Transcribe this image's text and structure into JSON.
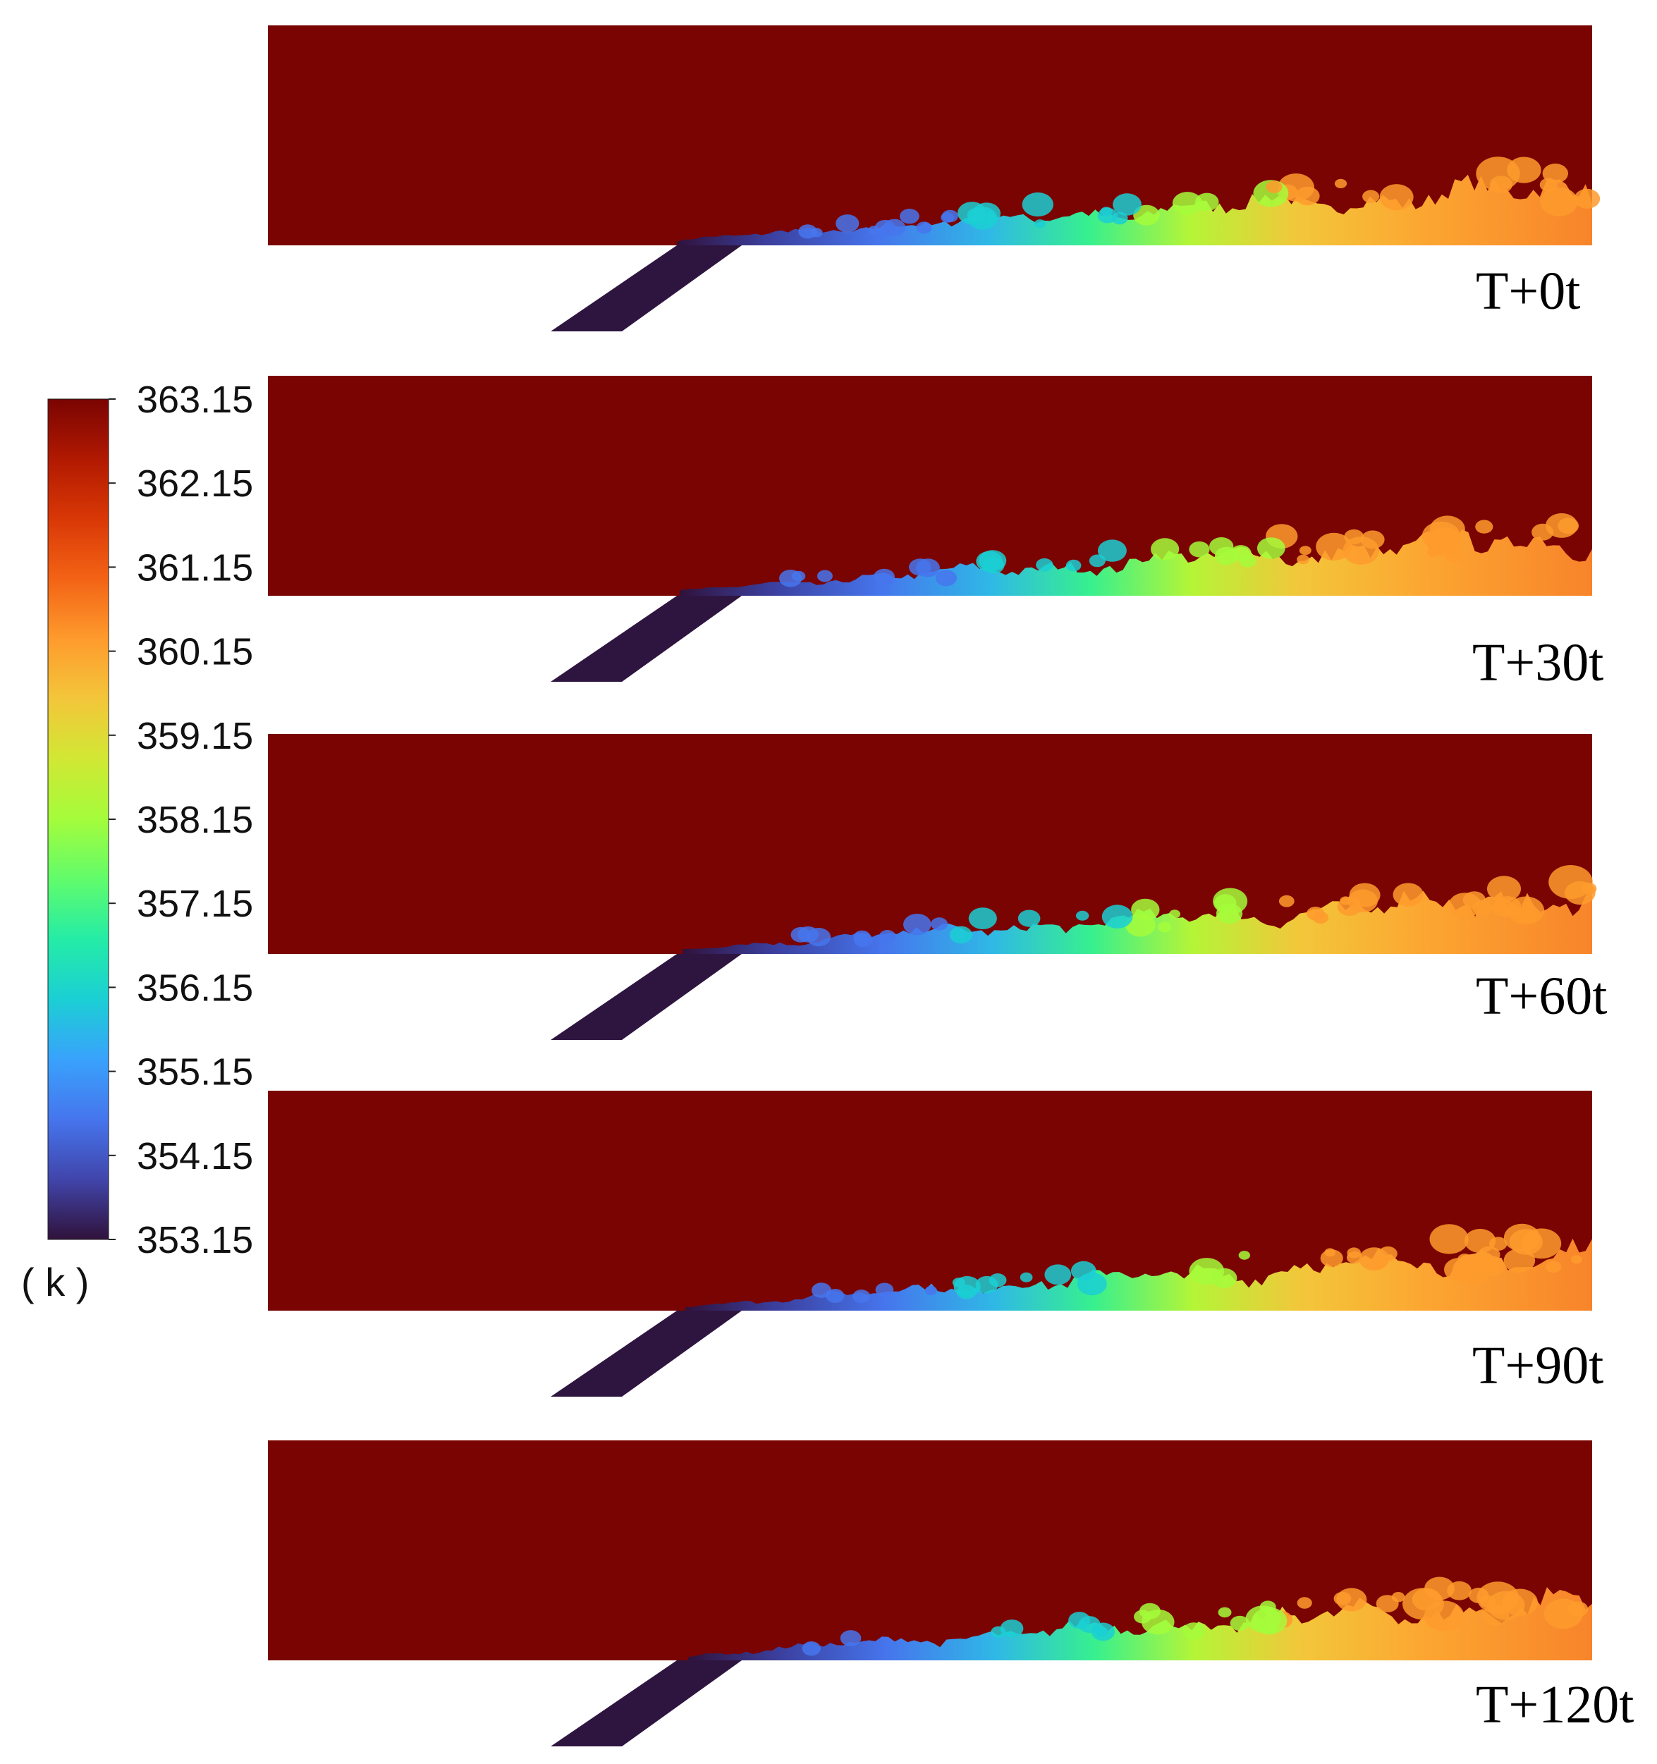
{
  "colorbar": {
    "unit": "( k )",
    "ticks": [
      "363.15",
      "362.15",
      "361.15",
      "360.15",
      "359.15",
      "358.15",
      "357.15",
      "356.15",
      "355.15",
      "354.15",
      "353.15"
    ],
    "colormap": [
      "#30123b",
      "#4145ab",
      "#4675ed",
      "#39a2fc",
      "#1bcfd4",
      "#24eca6",
      "#61fc6c",
      "#a4fc3b",
      "#d1e834",
      "#f3c63a",
      "#fe9b2d",
      "#f36315",
      "#d93806",
      "#b11901",
      "#7a0402"
    ]
  },
  "panels": [
    {
      "label": "T+0t"
    },
    {
      "label": "T+30t"
    },
    {
      "label": "T+60t"
    },
    {
      "label": "T+90t"
    },
    {
      "label": "T+120t"
    }
  ],
  "colors": {
    "background_field": "#7a0402",
    "inlet": "#2e1540"
  }
}
